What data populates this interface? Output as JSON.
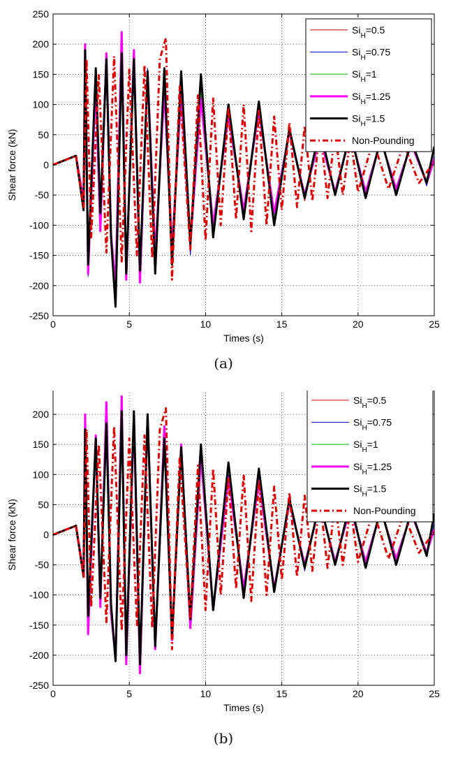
{
  "chart_data": [
    {
      "type": "line",
      "panel_label": "(a)",
      "xlabel": "Times (s)",
      "ylabel": "Shear force (kN)",
      "xlim": [
        0,
        25
      ],
      "ylim": [
        -250,
        250
      ],
      "xticks": [
        "0",
        "5",
        "10",
        "15",
        "20",
        "25"
      ],
      "yticks": [
        "250",
        "200",
        "150",
        "100",
        "50",
        "0",
        "-50",
        "-100",
        "-150",
        "-200",
        "-250"
      ],
      "grid": true,
      "legend_position": "top-right",
      "series": [
        {
          "name_base": "Si",
          "name_sub": "H",
          "name_suffix": "=0.5",
          "color": "#e00000",
          "width": 1,
          "dash": "",
          "x": [
            0,
            1.5,
            2,
            2.1,
            2.3,
            2.8,
            3.1,
            3.5,
            3.8,
            4.1,
            4.5,
            4.8,
            5.3,
            5.7,
            6.2,
            6.7,
            7.3,
            7.8,
            8.4,
            9,
            9.7,
            10.5,
            11.5,
            12.5,
            13.5,
            14.5,
            15.5,
            16.5,
            17.5,
            18.5,
            19.5,
            20.5,
            21.5,
            22.5,
            23.5,
            24.5,
            25
          ],
          "y": [
            0,
            15,
            -75,
            195,
            -175,
            150,
            -90,
            180,
            -110,
            -205,
            190,
            -175,
            175,
            -185,
            150,
            -160,
            130,
            -150,
            135,
            -140,
            125,
            -110,
            80,
            -85,
            95,
            -90,
            55,
            -60,
            50,
            -45,
            50,
            -45,
            40,
            -45,
            35,
            -30,
            10
          ]
        },
        {
          "name_base": "Si",
          "name_sub": "H",
          "name_suffix": "=0.75",
          "color": "#0000cc",
          "width": 1,
          "dash": "",
          "x": [
            0,
            1.5,
            2,
            2.1,
            2.3,
            2.8,
            3.1,
            3.5,
            3.8,
            4.1,
            4.5,
            4.8,
            5.3,
            5.7,
            6.2,
            6.7,
            7.3,
            7.8,
            8.4,
            9,
            9.7,
            10.5,
            11.5,
            12.5,
            13.5,
            14.5,
            15.5,
            16.5,
            17.5,
            18.5,
            19.5,
            20.5,
            21.5,
            22.5,
            23.5,
            24.5,
            25
          ],
          "y": [
            0,
            15,
            -70,
            190,
            -185,
            140,
            -100,
            185,
            -105,
            -215,
            210,
            -185,
            185,
            -195,
            160,
            -165,
            140,
            -155,
            140,
            -150,
            130,
            -115,
            90,
            -90,
            100,
            -95,
            60,
            -55,
            55,
            -50,
            55,
            -50,
            45,
            -45,
            40,
            -35,
            15
          ]
        },
        {
          "name_base": "Si",
          "name_sub": "H",
          "name_suffix": "=1",
          "color": "#00bb00",
          "width": 1,
          "dash": "",
          "x": [
            0,
            1.5,
            2,
            2.1,
            2.3,
            2.8,
            3.1,
            3.5,
            3.8,
            4.1,
            4.5,
            4.8,
            5.3,
            5.7,
            6.2,
            6.7,
            7.3,
            7.8,
            8.4,
            9,
            9.7,
            10.5,
            11.5,
            12.5,
            13.5,
            14.5,
            15.5,
            16.5,
            17.5,
            18.5,
            19.5,
            20.5,
            21.5,
            22.5,
            23.5,
            24.5,
            25
          ],
          "y": [
            0,
            15,
            -65,
            185,
            -170,
            145,
            -95,
            175,
            -100,
            -210,
            200,
            -180,
            180,
            -190,
            155,
            -160,
            135,
            -150,
            130,
            -140,
            120,
            -105,
            85,
            -80,
            95,
            -85,
            55,
            -50,
            50,
            -45,
            45,
            -45,
            40,
            -40,
            35,
            -30,
            10
          ]
        },
        {
          "name_base": "Si",
          "name_sub": "H",
          "name_suffix": "=1.25",
          "color": "#ff00ff",
          "width": 3,
          "dash": "",
          "x": [
            0,
            1.5,
            2,
            2.1,
            2.3,
            2.8,
            3.1,
            3.5,
            3.8,
            4.1,
            4.5,
            4.8,
            5.3,
            5.7,
            6.2,
            6.7,
            7.3,
            7.8,
            8.4,
            9,
            9.7,
            10.5,
            11.5,
            12.5,
            13.5,
            14.5,
            15.5,
            16.5,
            17.5,
            18.5,
            19.5,
            20.5,
            21.5,
            22.5,
            23.5,
            24.5,
            25
          ],
          "y": [
            0,
            15,
            -60,
            200,
            -180,
            135,
            -110,
            185,
            -115,
            -200,
            220,
            -190,
            190,
            -195,
            155,
            -150,
            125,
            -140,
            120,
            -130,
            110,
            -100,
            80,
            -75,
            90,
            -80,
            55,
            -50,
            45,
            -45,
            50,
            -45,
            40,
            -40,
            35,
            -30,
            10
          ]
        },
        {
          "name_base": "Si",
          "name_sub": "H",
          "name_suffix": "=1.5",
          "color": "#000000",
          "width": 3,
          "dash": "",
          "x": [
            0,
            1.5,
            2,
            2.1,
            2.3,
            2.8,
            3.1,
            3.5,
            3.8,
            4.1,
            4.5,
            4.8,
            5.3,
            5.7,
            6.2,
            6.7,
            7.3,
            7.8,
            8.4,
            9,
            9.7,
            10.5,
            11.5,
            12.5,
            13.5,
            14.5,
            15.5,
            16.5,
            17.5,
            18.5,
            19.5,
            20.5,
            21.5,
            22.5,
            23.5,
            24.5,
            25
          ],
          "y": [
            0,
            15,
            -75,
            190,
            -165,
            160,
            -80,
            175,
            -120,
            -235,
            185,
            -180,
            175,
            -175,
            155,
            -180,
            160,
            -165,
            155,
            -130,
            150,
            -120,
            100,
            -90,
            105,
            -100,
            60,
            -55,
            60,
            -50,
            55,
            -55,
            45,
            -50,
            40,
            -30,
            30
          ]
        },
        {
          "name_base": "Non-Pounding",
          "name_sub": "",
          "name_suffix": "",
          "color": "#e00000",
          "width": 3,
          "dash": "8,4,2,4",
          "x": [
            0,
            1.5,
            2,
            2.2,
            2.5,
            3,
            3.5,
            4,
            4.5,
            5,
            5.5,
            6,
            6.5,
            7,
            7.4,
            7.8,
            8.3,
            9,
            9.5,
            10,
            10.5,
            11,
            11.5,
            12,
            12.5,
            13,
            13.5,
            14,
            14.5,
            15,
            15.5,
            16,
            16.5,
            17,
            17.5,
            18,
            18.5,
            19,
            19.5,
            20,
            21,
            22,
            23,
            24,
            25
          ],
          "y": [
            0,
            15,
            -70,
            175,
            -120,
            150,
            -145,
            180,
            -160,
            160,
            -150,
            165,
            -155,
            175,
            210,
            -190,
            130,
            -140,
            115,
            -125,
            110,
            -100,
            95,
            -90,
            100,
            -110,
            90,
            -100,
            80,
            -75,
            70,
            -70,
            65,
            -60,
            60,
            -55,
            55,
            -50,
            45,
            -45,
            40,
            -40,
            35,
            -30,
            5
          ]
        }
      ]
    },
    {
      "type": "line",
      "panel_label": "(b)",
      "xlabel": "Times (s)",
      "ylabel": "Shear force (kN)",
      "xlim": [
        0,
        25
      ],
      "ylim": [
        -250,
        250
      ],
      "xticks": [
        "0",
        "5",
        "10",
        "15",
        "20",
        "25"
      ],
      "yticks": [
        "250",
        "200",
        "150",
        "100",
        "50",
        "0",
        "-50",
        "-100",
        "-150",
        "-200",
        "-250"
      ],
      "grid": true,
      "legend_position": "top-right",
      "series": [
        {
          "name_base": "Si",
          "name_sub": "H",
          "name_suffix": "=0.5",
          "color": "#e00000",
          "width": 1,
          "dash": "",
          "x": [
            0,
            1.5,
            2,
            2.1,
            2.3,
            2.8,
            3.1,
            3.5,
            3.8,
            4.1,
            4.5,
            4.8,
            5.3,
            5.7,
            6.2,
            6.7,
            7.3,
            7.8,
            8.4,
            9,
            9.7,
            10.5,
            11.5,
            12.5,
            13.5,
            14.5,
            15.5,
            16.5,
            17.5,
            18.5,
            19.5,
            20.5,
            21.5,
            22.5,
            23.5,
            24.5,
            25
          ],
          "y": [
            0,
            15,
            -70,
            200,
            -160,
            155,
            -120,
            185,
            -130,
            -205,
            220,
            -200,
            195,
            -210,
            180,
            -175,
            165,
            -160,
            140,
            -145,
            125,
            -115,
            95,
            -95,
            90,
            -90,
            60,
            -55,
            50,
            -50,
            45,
            -50,
            40,
            -45,
            35,
            -30,
            15
          ]
        },
        {
          "name_base": "Si",
          "name_sub": "H",
          "name_suffix": "=0.75",
          "color": "#0000cc",
          "width": 1,
          "dash": "",
          "x": [
            0,
            1.5,
            2,
            2.1,
            2.3,
            2.8,
            3.1,
            3.5,
            3.8,
            4.1,
            4.5,
            4.8,
            5.3,
            5.7,
            6.2,
            6.7,
            7.3,
            7.8,
            8.4,
            9,
            9.7,
            10.5,
            11.5,
            12.5,
            13.5,
            14.5,
            15.5,
            16.5,
            17.5,
            18.5,
            19.5,
            20.5,
            21.5,
            22.5,
            23.5,
            24.5,
            25
          ],
          "y": [
            0,
            15,
            -65,
            195,
            -165,
            150,
            -115,
            190,
            -125,
            -210,
            225,
            -205,
            200,
            -215,
            185,
            -180,
            170,
            -165,
            145,
            -150,
            130,
            -120,
            100,
            -95,
            95,
            -95,
            65,
            -60,
            55,
            -50,
            50,
            -50,
            45,
            -45,
            40,
            -35,
            20
          ]
        },
        {
          "name_base": "Si",
          "name_sub": "H",
          "name_suffix": "=1",
          "color": "#00bb00",
          "width": 1,
          "dash": "",
          "x": [
            0,
            1.5,
            2,
            2.1,
            2.3,
            2.8,
            3.1,
            3.5,
            3.8,
            4.1,
            4.5,
            4.8,
            5.3,
            5.7,
            6.2,
            6.7,
            7.3,
            7.8,
            8.4,
            9,
            9.7,
            10.5,
            11.5,
            12.5,
            13.5,
            14.5,
            15.5,
            16.5,
            17.5,
            18.5,
            19.5,
            20.5,
            21.5,
            22.5,
            23.5,
            24.5,
            25
          ],
          "y": [
            0,
            15,
            -60,
            190,
            -160,
            145,
            -110,
            180,
            -120,
            -200,
            215,
            -195,
            190,
            -205,
            175,
            -170,
            160,
            -155,
            135,
            -140,
            120,
            -110,
            90,
            -90,
            85,
            -85,
            55,
            -50,
            50,
            -45,
            45,
            -45,
            40,
            -40,
            35,
            -30,
            15
          ]
        },
        {
          "name_base": "Si",
          "name_sub": "H",
          "name_suffix": "=1.25",
          "color": "#ff00ff",
          "width": 3,
          "dash": "",
          "x": [
            0,
            1.5,
            2,
            2.1,
            2.3,
            2.8,
            3.1,
            3.5,
            3.8,
            4.1,
            4.5,
            4.8,
            5.3,
            5.7,
            6.2,
            6.7,
            7.3,
            7.8,
            8.4,
            9,
            9.7,
            10.5,
            11.5,
            12.5,
            13.5,
            14.5,
            15.5,
            16.5,
            17.5,
            18.5,
            19.5,
            20.5,
            21.5,
            22.5,
            23.5,
            24.5,
            25
          ],
          "y": [
            0,
            15,
            -65,
            200,
            -165,
            165,
            -120,
            220,
            -130,
            -205,
            230,
            -215,
            195,
            -230,
            200,
            -190,
            180,
            -175,
            150,
            -155,
            130,
            -125,
            95,
            -90,
            90,
            -90,
            55,
            -50,
            50,
            -45,
            45,
            -45,
            40,
            -40,
            35,
            -30,
            10
          ]
        },
        {
          "name_base": "Si",
          "name_sub": "H",
          "name_suffix": "=1.5",
          "color": "#000000",
          "width": 3,
          "dash": "",
          "x": [
            0,
            1.5,
            2,
            2.1,
            2.3,
            2.8,
            3.1,
            3.5,
            3.8,
            4.1,
            4.5,
            4.8,
            5.3,
            5.7,
            6.2,
            6.7,
            7.3,
            7.8,
            8.4,
            9,
            9.7,
            10.5,
            11.5,
            12.5,
            13.5,
            14.5,
            15.5,
            16.5,
            17.5,
            18.5,
            19.5,
            20.5,
            21.5,
            22.5,
            23.5,
            24.5,
            25
          ],
          "y": [
            0,
            15,
            -70,
            175,
            -135,
            160,
            -105,
            185,
            -115,
            -210,
            205,
            -200,
            205,
            -215,
            200,
            -185,
            160,
            -170,
            145,
            -140,
            150,
            -125,
            120,
            -105,
            110,
            -95,
            60,
            -55,
            55,
            -50,
            55,
            -55,
            45,
            -50,
            40,
            -35,
            35
          ]
        },
        {
          "name_base": "Non-Pounding",
          "name_sub": "",
          "name_suffix": "",
          "color": "#e00000",
          "width": 3,
          "dash": "8,4,2,4",
          "x": [
            0,
            1.5,
            2,
            2.2,
            2.5,
            3,
            3.5,
            4,
            4.5,
            5,
            5.5,
            6,
            6.5,
            7,
            7.4,
            7.8,
            8.3,
            9,
            9.5,
            10,
            10.5,
            11,
            11.5,
            12,
            12.5,
            13,
            13.5,
            14,
            14.5,
            15,
            15.5,
            16,
            16.5,
            17,
            17.5,
            18,
            18.5,
            19,
            19.5,
            20,
            21,
            22,
            23,
            24,
            25
          ],
          "y": [
            0,
            15,
            -70,
            175,
            -120,
            150,
            -145,
            180,
            -160,
            160,
            -150,
            165,
            -155,
            175,
            210,
            -190,
            130,
            -140,
            115,
            -125,
            110,
            -100,
            95,
            -90,
            100,
            -110,
            90,
            -100,
            80,
            -75,
            70,
            -70,
            65,
            -60,
            60,
            -55,
            55,
            -50,
            45,
            -45,
            40,
            -40,
            35,
            -30,
            5
          ]
        }
      ]
    }
  ]
}
